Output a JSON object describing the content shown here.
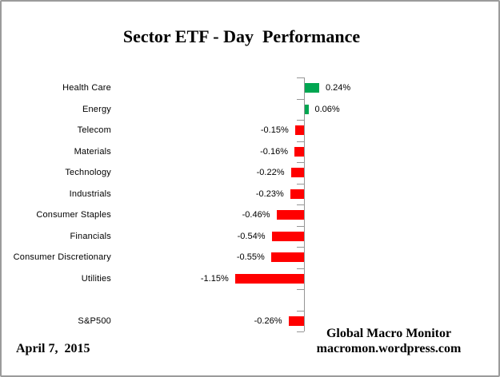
{
  "title": "Sector ETF - Day  Performance",
  "footer": {
    "date": "April 7,  2015",
    "attribution_line1": "Global Macro Monitor",
    "attribution_line2": "macromon.wordpress.com"
  },
  "colors": {
    "positive_bar": "#00A651",
    "negative_bar": "#FF0000",
    "axis": "#969696",
    "text": "#000000",
    "frame_border": "#9B9B9B",
    "background": "#FFFFFF"
  },
  "chart_data": {
    "type": "bar",
    "orientation": "horizontal",
    "title": "Sector ETF - Day  Performance",
    "unit": "percent",
    "baseline": 0,
    "gridlines": false,
    "value_axis_visible": false,
    "legend": "none",
    "categories": [
      "Health Care",
      "Energy",
      "Telecom",
      "Materials",
      "Technology",
      "Industrials",
      "Consumer Staples",
      "Financials",
      "Consumer Discretionary",
      "Utilities",
      "",
      "S&P500"
    ],
    "values": [
      0.24,
      0.06,
      -0.15,
      -0.16,
      -0.22,
      -0.23,
      -0.46,
      -0.54,
      -0.55,
      -1.15,
      null,
      -0.26
    ],
    "value_labels": [
      "0.24%",
      "0.06%",
      "-0.15%",
      "-0.16%",
      "-0.22%",
      "-0.23%",
      "-0.46%",
      "-0.54%",
      "-0.55%",
      "-1.15%",
      "",
      "-0.26%"
    ],
    "bar_color_rule": "green if positive, red if negative",
    "xlim_implied": [
      -1.5,
      0.6
    ]
  }
}
